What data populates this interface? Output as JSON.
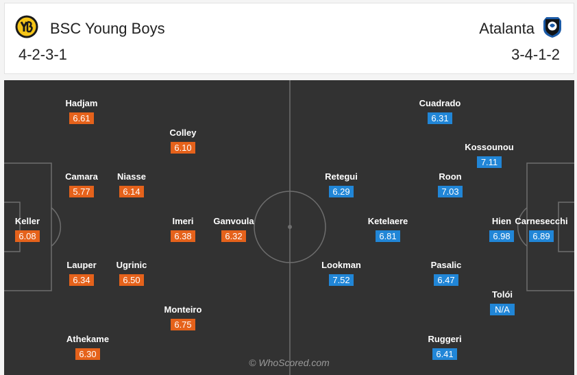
{
  "home": {
    "name": "BSC Young Boys",
    "formation": "4-2-3-1",
    "crest_icon": "young-boys-crest-icon",
    "color": "#e5621b",
    "players": [
      {
        "name": "Hadjam",
        "rating": "6.61"
      },
      {
        "name": "Colley",
        "rating": "6.10"
      },
      {
        "name": "Camara",
        "rating": "5.77"
      },
      {
        "name": "Niasse",
        "rating": "6.14"
      },
      {
        "name": "Keller",
        "rating": "6.08"
      },
      {
        "name": "Imeri",
        "rating": "6.38"
      },
      {
        "name": "Ganvoula",
        "rating": "6.32"
      },
      {
        "name": "Lauper",
        "rating": "6.34"
      },
      {
        "name": "Ugrinic",
        "rating": "6.50"
      },
      {
        "name": "Monteiro",
        "rating": "6.75"
      },
      {
        "name": "Athekame",
        "rating": "6.30"
      }
    ]
  },
  "away": {
    "name": "Atalanta",
    "formation": "3-4-1-2",
    "crest_icon": "atalanta-crest-icon",
    "color": "#2186d7",
    "players": [
      {
        "name": "Cuadrado",
        "rating": "6.31"
      },
      {
        "name": "Kossounou",
        "rating": "7.11"
      },
      {
        "name": "Retegui",
        "rating": "6.29"
      },
      {
        "name": "Roon",
        "rating": "7.03"
      },
      {
        "name": "Ketelaere",
        "rating": "6.81"
      },
      {
        "name": "Hien",
        "rating": "6.98"
      },
      {
        "name": "Carnesecchi",
        "rating": "6.89"
      },
      {
        "name": "Lookman",
        "rating": "7.52"
      },
      {
        "name": "Pasalic",
        "rating": "6.47"
      },
      {
        "name": "Tolói",
        "rating": "N/A"
      },
      {
        "name": "Ruggeri",
        "rating": "6.41"
      }
    ]
  },
  "watermark": "© WhoScored.com"
}
